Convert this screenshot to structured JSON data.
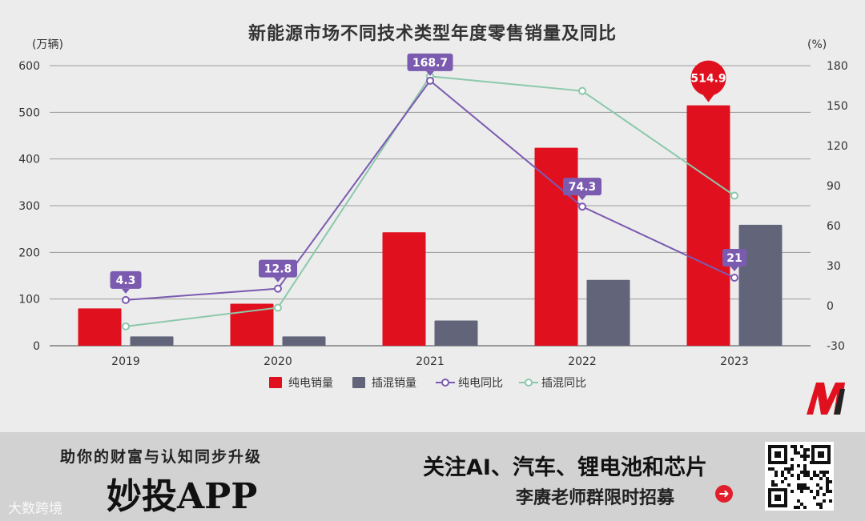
{
  "colors": {
    "bev_bar": "#e0101f",
    "phev_bar": "#62647a",
    "bev_line": "#7b5bb0",
    "phev_line": "#8cc9ab",
    "grid": "#9a9a9a",
    "text": "#333333"
  },
  "chart_data": {
    "type": "bar",
    "title": "新能源市场不同技术类型年度零售销量及同比",
    "categories": [
      "2019",
      "2020",
      "2021",
      "2022",
      "2023"
    ],
    "y_left": {
      "unit_label": "(万辆)",
      "range": [
        0,
        600
      ],
      "ticks": [
        "0",
        "100",
        "200",
        "300",
        "400",
        "500",
        "600"
      ]
    },
    "y_right": {
      "unit_label": "(%)",
      "range": [
        -30,
        180
      ],
      "ticks": [
        "-30",
        "0",
        "30",
        "60",
        "90",
        "120",
        "150",
        "180"
      ]
    },
    "grid": true,
    "legend_placement": "bottom",
    "series": [
      {
        "name": "纯电销量",
        "kind": "bar",
        "axis": "left",
        "color_key": "bev_bar",
        "values": [
          80,
          90,
          243,
          424,
          514.9
        ]
      },
      {
        "name": "插混销量",
        "kind": "bar",
        "axis": "left",
        "color_key": "phev_bar",
        "values": [
          20,
          20,
          54,
          141,
          259
        ]
      },
      {
        "name": "纯电同比",
        "kind": "line",
        "axis": "right",
        "color_key": "bev_line",
        "values": [
          4.3,
          12.8,
          168.7,
          74.3,
          21
        ]
      },
      {
        "name": "插混同比",
        "kind": "line",
        "axis": "right",
        "color_key": "phev_line",
        "values": [
          -15.5,
          -1.5,
          172,
          161,
          82.5
        ]
      }
    ],
    "annotations": [
      {
        "series": "纯电同比",
        "category": "2019",
        "text": "4.3"
      },
      {
        "series": "纯电同比",
        "category": "2020",
        "text": "12.8"
      },
      {
        "series": "纯电同比",
        "category": "2021",
        "text": "168.7"
      },
      {
        "series": "纯电同比",
        "category": "2022",
        "text": "74.3"
      },
      {
        "series": "纯电同比",
        "category": "2023",
        "text": "21"
      },
      {
        "series": "纯电销量",
        "category": "2023",
        "text": "514.9"
      }
    ]
  },
  "banner": {
    "slogan": "助你的财富与认知同步升级",
    "app_name": "妙投APP",
    "follow_text": "关注AI、汽车、锂电池和芯片",
    "recruit_text": "李赓老师群限时招募",
    "recruit_arrow": "➜",
    "watermark": "大数跨境"
  },
  "icons": {
    "brand_logo": "m-logo-icon",
    "qr": "qr-code-icon",
    "arrow": "arrow-right-circle-icon"
  }
}
